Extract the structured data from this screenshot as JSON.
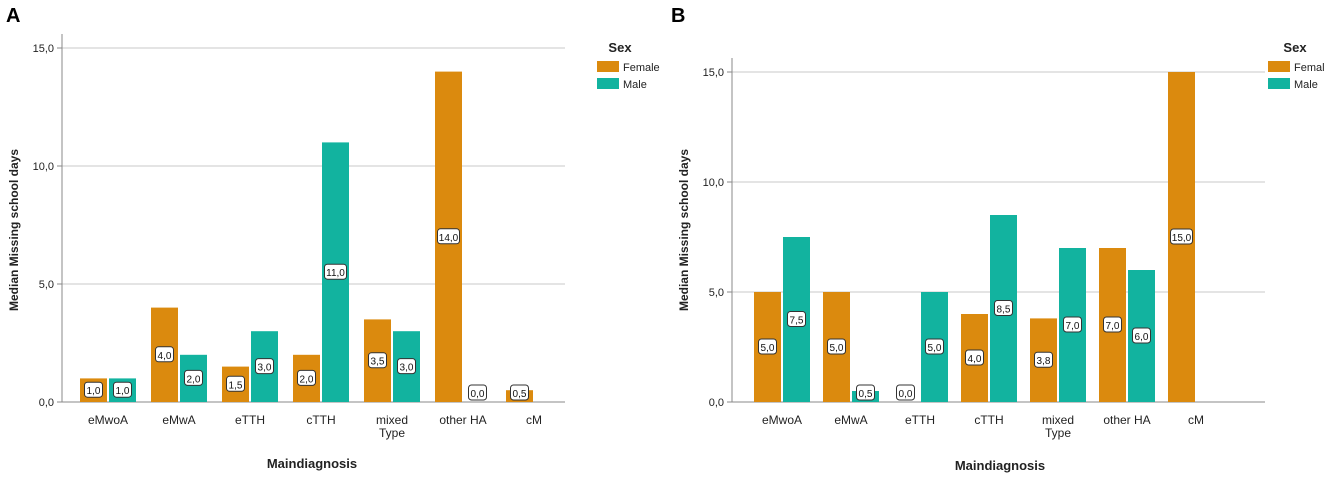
{
  "colors": {
    "female": "#DB8A0E",
    "male": "#12B39F",
    "grid": "#C8C8C8",
    "axis": "#888888",
    "text": "#222222"
  },
  "chart_data": [
    {
      "panel_label": "A",
      "type": "bar",
      "title": "",
      "xlabel": "Maindiagnosis",
      "ylabel": "Median Missing school days",
      "ylim": [
        0,
        15
      ],
      "y_ticks": [
        0,
        5,
        10,
        15
      ],
      "y_tick_labels": [
        "0,0",
        "5,0",
        "10,0",
        "15,0"
      ],
      "grid": true,
      "legend_title": "Sex",
      "legend_position": "top-right",
      "categories": [
        [
          "eMwoA"
        ],
        [
          "eMwA"
        ],
        [
          "eTTH"
        ],
        [
          "cTTH"
        ],
        [
          "mixed",
          "Type"
        ],
        [
          "other HA"
        ],
        [
          "cM"
        ]
      ],
      "series": [
        {
          "name": "Female",
          "values": [
            1.0,
            4.0,
            1.5,
            2.0,
            3.5,
            14.0,
            0.5
          ],
          "labels": [
            "1,0",
            "4,0",
            "1,5",
            "2,0",
            "3,5",
            "14,0",
            "0,5"
          ]
        },
        {
          "name": "Male",
          "values": [
            1.0,
            2.0,
            3.0,
            11.0,
            3.0,
            0.0,
            null
          ],
          "labels": [
            "1,0",
            "2,0",
            "3,0",
            "11,0",
            "3,0",
            "0,0",
            null
          ]
        }
      ]
    },
    {
      "panel_label": "B",
      "type": "bar",
      "title": "",
      "xlabel": "Maindiagnosis",
      "ylabel": "Median Missing school days",
      "ylim": [
        0,
        15
      ],
      "y_ticks": [
        0,
        5,
        10,
        15
      ],
      "y_tick_labels": [
        "0,0",
        "5,0",
        "10,0",
        "15,0"
      ],
      "grid": true,
      "legend_title": "Sex",
      "legend_position": "top-right",
      "categories": [
        [
          "eMwoA"
        ],
        [
          "eMwA"
        ],
        [
          "eTTH"
        ],
        [
          "cTTH"
        ],
        [
          "mixed",
          "Type"
        ],
        [
          "other HA"
        ],
        [
          "cM"
        ]
      ],
      "series": [
        {
          "name": "Female",
          "values": [
            5.0,
            5.0,
            0.0,
            4.0,
            3.8,
            7.0,
            15.0
          ],
          "labels": [
            "5,0",
            "5,0",
            "0,0",
            "4,0",
            "3,8",
            "7,0",
            "15,0"
          ]
        },
        {
          "name": "Male",
          "values": [
            7.5,
            0.5,
            5.0,
            8.5,
            7.0,
            6.0,
            null
          ],
          "labels": [
            "7,5",
            "0,5",
            "5,0",
            "8,5",
            "7,0",
            "6,0",
            null
          ]
        }
      ]
    }
  ]
}
